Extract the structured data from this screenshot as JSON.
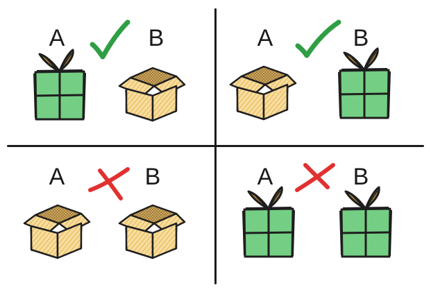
{
  "colors": {
    "gift_fill": "#74cf84",
    "gift_stroke": "#1e1e1e",
    "ribbon_fill": "#a8853a",
    "box_fill": "#f3d48e",
    "box_hatch": "#e6a93a",
    "box_stroke": "#1e1e1e",
    "check": "#2f9e44",
    "cross": "#e03131",
    "divider": "#1b1b1b"
  },
  "quadrants": [
    {
      "label_a": "A",
      "label_b": "B",
      "item_a": "gift-icon",
      "item_b": "open-box-icon",
      "result": "check-icon"
    },
    {
      "label_a": "A",
      "label_b": "B",
      "item_a": "open-box-icon",
      "item_b": "gift-icon",
      "result": "check-icon"
    },
    {
      "label_a": "A",
      "label_b": "B",
      "item_a": "open-box-icon",
      "item_b": "open-box-icon",
      "result": "cross-icon"
    },
    {
      "label_a": "A",
      "label_b": "B",
      "item_a": "gift-icon",
      "item_b": "gift-icon",
      "result": "cross-icon"
    }
  ]
}
